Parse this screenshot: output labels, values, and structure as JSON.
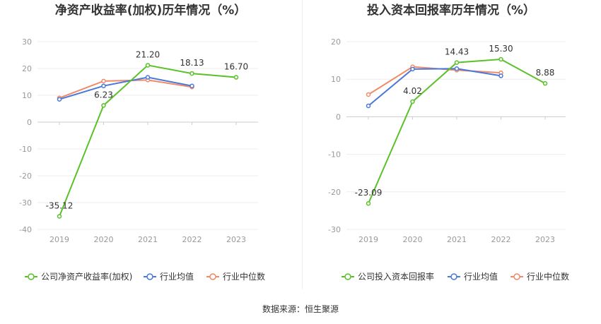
{
  "chart_data": [
    {
      "type": "line",
      "title": "净资产收益率(加权)历年情况（%）",
      "categories": [
        "2019",
        "2020",
        "2021",
        "2022",
        "2023"
      ],
      "ylim": [
        -40,
        30
      ],
      "yticks": [
        30,
        20,
        10,
        0,
        -10,
        -20,
        -30,
        -40
      ],
      "grid": true,
      "legend_position": "bottom",
      "series": [
        {
          "name": "公司净资产收益率(加权)",
          "color": "#5ac128",
          "values": [
            -35.12,
            6.23,
            21.2,
            18.13,
            16.7
          ],
          "labels": [
            "-35.12",
            "6.23",
            "21.20",
            "18.13",
            "16.70"
          ]
        },
        {
          "name": "行业均值",
          "color": "#4a78d8",
          "values": [
            8.5,
            13.5,
            16.7,
            13.5,
            null
          ]
        },
        {
          "name": "行业中位数",
          "color": "#f08a68",
          "values": [
            9.0,
            15.3,
            15.7,
            13.1,
            null
          ]
        }
      ]
    },
    {
      "type": "line",
      "title": "投入资本回报率历年情况（%）",
      "categories": [
        "2019",
        "2020",
        "2021",
        "2022",
        "2023"
      ],
      "ylim": [
        -30,
        20
      ],
      "yticks": [
        20,
        10,
        0,
        -10,
        -20,
        -30
      ],
      "grid": true,
      "legend_position": "bottom",
      "series": [
        {
          "name": "公司投入资本回报率",
          "color": "#5ac128",
          "values": [
            -23.09,
            4.02,
            14.43,
            15.3,
            8.88
          ],
          "labels": [
            "-23.09",
            "4.02",
            "14.43",
            "15.30",
            "8.88"
          ]
        },
        {
          "name": "行业均值",
          "color": "#4a78d8",
          "values": [
            2.9,
            12.7,
            12.8,
            10.9,
            null
          ]
        },
        {
          "name": "行业中位数",
          "color": "#f08a68",
          "values": [
            5.9,
            13.3,
            12.4,
            11.7,
            null
          ]
        }
      ]
    }
  ],
  "footer": {
    "source": "数据来源：恒生聚源"
  }
}
